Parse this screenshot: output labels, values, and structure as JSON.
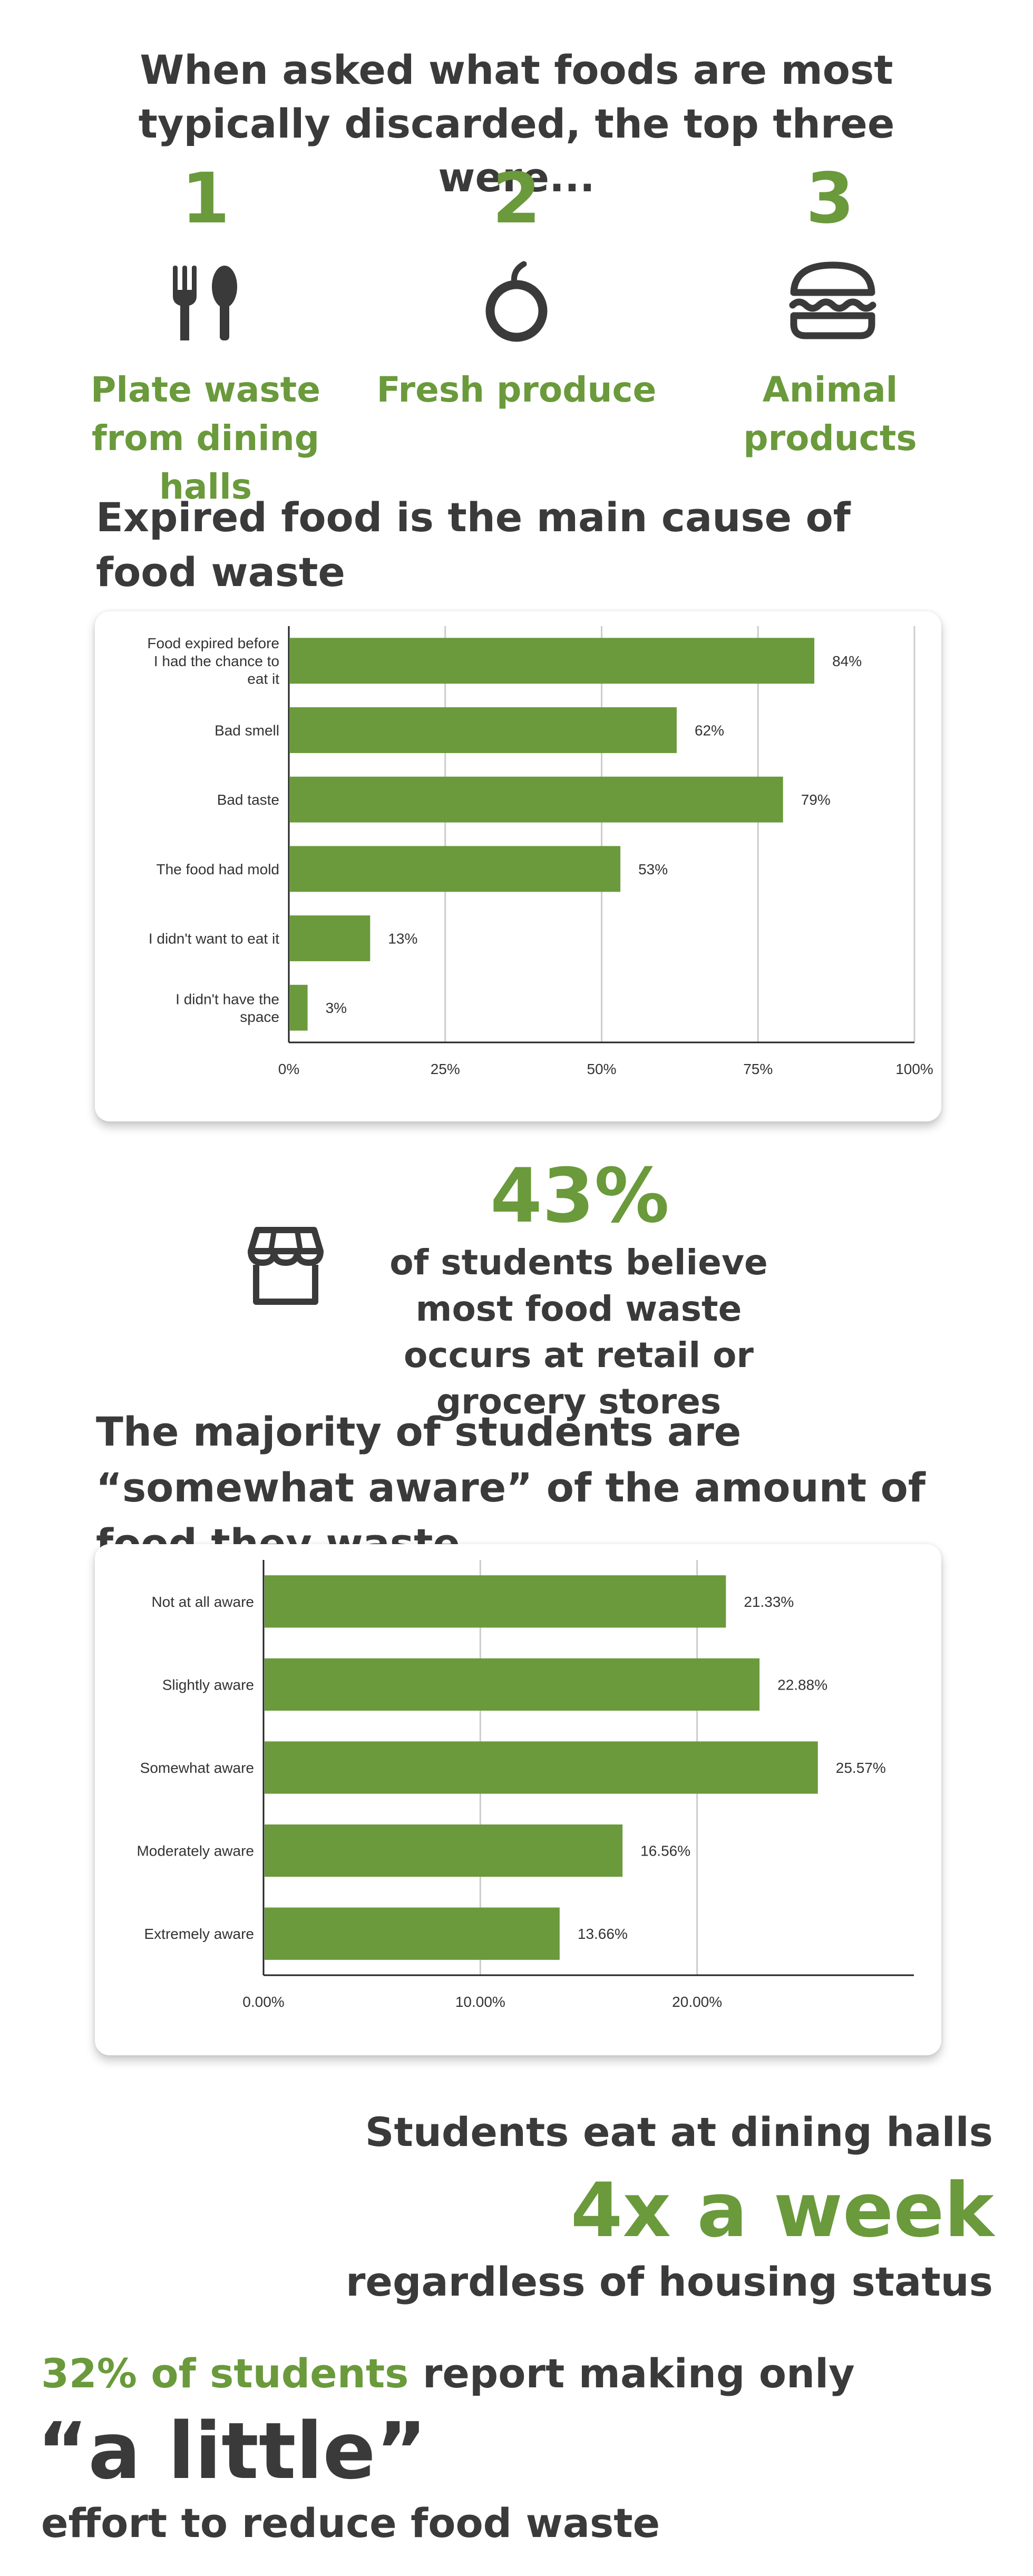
{
  "top_three": {
    "heading": "When asked what foods are most typically discarded, the top three were...",
    "items": [
      {
        "rank": "1",
        "label": "Plate waste from dining halls",
        "icon": "fork-spoon-icon"
      },
      {
        "rank": "2",
        "label": "Fresh produce",
        "icon": "apple-icon"
      },
      {
        "rank": "3",
        "label": "Animal products",
        "icon": "burger-icon"
      }
    ]
  },
  "chart1": {
    "heading": "Expired food is the main cause of food waste"
  },
  "stat_43": {
    "value": "43%",
    "text": "of students believe most food waste occurs at retail or grocery stores",
    "icon": "storefront-icon"
  },
  "chart2": {
    "heading": "The majority of students are “somewhat aware” of the amount of food they waste"
  },
  "dining": {
    "line1": "Students eat at dining halls",
    "value": "4x a week",
    "line3": "regardless of housing status"
  },
  "effort": {
    "highlight": "32% of students",
    "rest": " report making only",
    "quote": "“a little”",
    "tail": "effort to reduce food waste"
  },
  "colors": {
    "accent": "#6a9a3b",
    "text": "#3a3a3a",
    "bar": "#6a9a3b",
    "grid": "#cccccc"
  },
  "chart_data": [
    {
      "type": "bar",
      "orientation": "horizontal",
      "title": "Expired food is the main cause of food waste",
      "categories": [
        "Food expired before I had the chance to eat it",
        "Bad smell",
        "Bad taste",
        "The food had mold",
        "I didn't want to eat it",
        "I didn't have the space"
      ],
      "category_lines": [
        [
          "Food expired before",
          "I had the chance to",
          "eat it"
        ],
        [
          "Bad smell"
        ],
        [
          "Bad taste"
        ],
        [
          "The food had mold"
        ],
        [
          "I didn't want to eat it"
        ],
        [
          "I didn't have the",
          "space"
        ]
      ],
      "values": [
        84,
        62,
        79,
        53,
        13,
        3
      ],
      "value_labels": [
        "84%",
        "62%",
        "79%",
        "53%",
        "13%",
        "3%"
      ],
      "xlim": [
        0,
        100
      ],
      "xticks": [
        0,
        25,
        50,
        75,
        100
      ],
      "xtick_labels": [
        "0%",
        "25%",
        "50%",
        "75%",
        "100%"
      ],
      "grid": true
    },
    {
      "type": "bar",
      "orientation": "horizontal",
      "title": "The majority of students are “somewhat aware” of the amount of food they waste",
      "categories": [
        "Not at all aware",
        "Slightly aware",
        "Somewhat aware",
        "Moderately aware",
        "Extremely aware"
      ],
      "category_lines": [
        [
          "Not at all aware"
        ],
        [
          "Slightly aware"
        ],
        [
          "Somewhat aware"
        ],
        [
          "Moderately aware"
        ],
        [
          "Extremely aware"
        ]
      ],
      "values": [
        21.33,
        22.88,
        25.57,
        16.56,
        13.66
      ],
      "value_labels": [
        "21.33%",
        "22.88%",
        "25.57%",
        "16.56%",
        "13.66%"
      ],
      "xlim": [
        0,
        30
      ],
      "xticks": [
        0,
        10,
        20
      ],
      "xtick_labels": [
        "0.00%",
        "10.00%",
        "20.00%"
      ],
      "grid": true
    }
  ]
}
